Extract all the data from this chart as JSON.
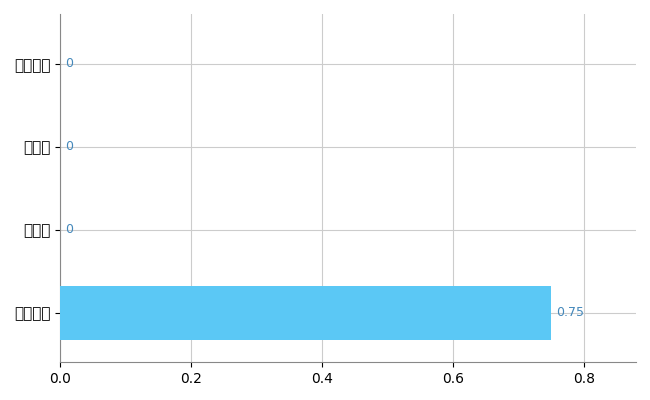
{
  "categories": [
    "全国平均",
    "県最大",
    "県平均",
    "あわら市"
  ],
  "values": [
    0.75,
    0,
    0,
    0
  ],
  "bar_color": "#5BC8F5",
  "value_label_color": "#4488BB",
  "zero_label_color": "#4488BB",
  "xlim": [
    0,
    0.88
  ],
  "xticks": [
    0,
    0.2,
    0.4,
    0.6,
    0.8
  ],
  "grid_color": "#CCCCCC",
  "background_color": "#FFFFFF",
  "bar_height": 0.65
}
